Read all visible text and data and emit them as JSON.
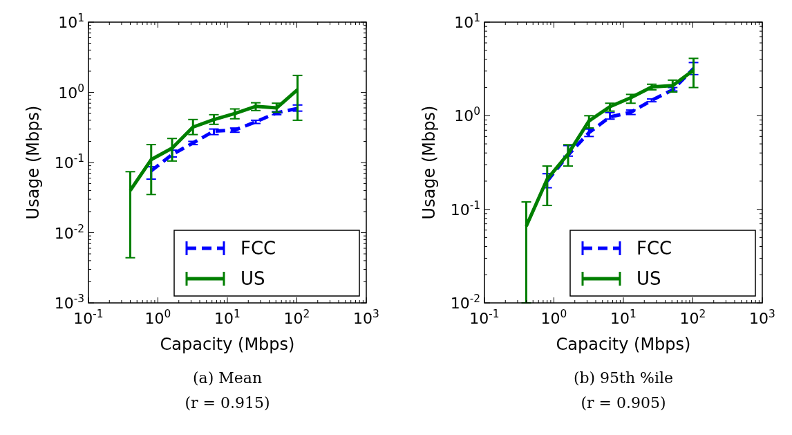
{
  "chart_data": [
    {
      "type": "line",
      "xlabel": "Capacity (Mbps)",
      "ylabel": "Usage (Mbps)",
      "annotations": [
        "(a) Mean",
        "(r = 0.915)"
      ],
      "log": "xy",
      "legend": "bottom right",
      "grid": false,
      "xlim": [
        0.1,
        1000
      ],
      "xticks": [
        {
          "value": 0.1,
          "label": "10$^{-1}$"
        },
        {
          "value": 1,
          "label": "10$^{0}$"
        },
        {
          "value": 10,
          "label": "10$^{1}$"
        },
        {
          "value": 100,
          "label": "10$^{2}$"
        },
        {
          "value": 1000,
          "label": "10$^{3}$"
        }
      ],
      "ylim": [
        0.001,
        10
      ],
      "yticks": [
        {
          "value": 0.001,
          "label": "10$^{-3}$"
        },
        {
          "value": 0.01,
          "label": "10$^{-2}$"
        },
        {
          "value": 0.1,
          "label": "10$^{-1}$"
        },
        {
          "value": 1,
          "label": "10$^{0}$"
        },
        {
          "value": 10,
          "label": "10$^{1}$"
        }
      ],
      "series": [
        {
          "name": "FCC",
          "color": "#0000ff",
          "line_style": "dashed",
          "x": [
            0.8,
            1.6,
            3.2,
            6.4,
            12.8,
            25.6,
            51.2,
            102.4
          ],
          "values": [
            0.076,
            0.13,
            0.19,
            0.28,
            0.29,
            0.38,
            0.51,
            0.59
          ],
          "errors": [
            [
              0.058,
              0.087
            ],
            [
              0.12,
              0.15
            ],
            [
              0.18,
              0.2
            ],
            [
              0.25,
              0.3
            ],
            [
              0.27,
              0.31
            ],
            [
              0.36,
              0.4
            ],
            [
              0.48,
              0.53
            ],
            [
              0.54,
              0.66
            ]
          ]
        },
        {
          "name": "US",
          "color": "#007f00",
          "line_style": "solid",
          "x": [
            0.4,
            0.8,
            1.6,
            3.2,
            6.4,
            12.8,
            25.6,
            51.2,
            102.4
          ],
          "values": [
            0.04,
            0.11,
            0.16,
            0.32,
            0.41,
            0.5,
            0.63,
            0.6,
            1.09
          ],
          "errors": [
            [
              0.0044,
              0.074
            ],
            [
              0.035,
              0.18
            ],
            [
              0.105,
              0.22
            ],
            [
              0.25,
              0.41
            ],
            [
              0.35,
              0.48
            ],
            [
              0.42,
              0.58
            ],
            [
              0.55,
              0.71
            ],
            [
              0.52,
              0.7
            ],
            [
              0.4,
              1.74
            ]
          ]
        }
      ]
    },
    {
      "type": "line",
      "xlabel": "Capacity (Mbps)",
      "ylabel": "Usage (Mbps)",
      "annotations": [
        "(b) 95th %ile",
        "(r = 0.905)"
      ],
      "log": "xy",
      "legend": "bottom right",
      "grid": false,
      "xlim": [
        0.1,
        1000
      ],
      "xticks": [
        {
          "value": 0.1,
          "label": "10$^{-1}$"
        },
        {
          "value": 1,
          "label": "10$^{0}$"
        },
        {
          "value": 10,
          "label": "10$^{1}$"
        },
        {
          "value": 100,
          "label": "10$^{2}$"
        },
        {
          "value": 1000,
          "label": "10$^{3}$"
        }
      ],
      "ylim": [
        0.01,
        10
      ],
      "yticks": [
        {
          "value": 0.01,
          "label": "10$^{-2}$"
        },
        {
          "value": 0.1,
          "label": "10$^{-1}$"
        },
        {
          "value": 1,
          "label": "10$^{0}$"
        },
        {
          "value": 10,
          "label": "10$^{1}$"
        }
      ],
      "series": [
        {
          "name": "FCC",
          "color": "#0000ff",
          "line_style": "dashed",
          "x": [
            0.8,
            1.6,
            3.2,
            6.4,
            12.8,
            25.6,
            51.2,
            102.4
          ],
          "values": [
            0.2,
            0.38,
            0.66,
            0.97,
            1.09,
            1.46,
            1.89,
            3.2
          ],
          "errors": [
            [
              0.17,
              0.24
            ],
            [
              0.37,
              0.48
            ],
            [
              0.6,
              0.72
            ],
            [
              0.92,
              1.08
            ],
            [
              1.03,
              1.15
            ],
            [
              1.41,
              1.51
            ],
            [
              1.84,
              2.0
            ],
            [
              2.75,
              3.7
            ]
          ]
        },
        {
          "name": "US",
          "color": "#007f00",
          "line_style": "solid",
          "x": [
            0.4,
            0.8,
            1.6,
            3.2,
            6.4,
            12.8,
            25.6,
            51.2,
            102.4
          ],
          "values": [
            0.066,
            0.21,
            0.39,
            0.88,
            1.25,
            1.56,
            2.03,
            2.1,
            3.07
          ],
          "errors": [
            [
              0.01,
              0.12
            ],
            [
              0.11,
              0.29
            ],
            [
              0.29,
              0.49
            ],
            [
              0.74,
              1.0
            ],
            [
              1.12,
              1.36
            ],
            [
              1.36,
              1.69
            ],
            [
              1.89,
              2.17
            ],
            [
              1.79,
              2.4
            ],
            [
              2.0,
              4.1
            ]
          ]
        }
      ]
    }
  ]
}
